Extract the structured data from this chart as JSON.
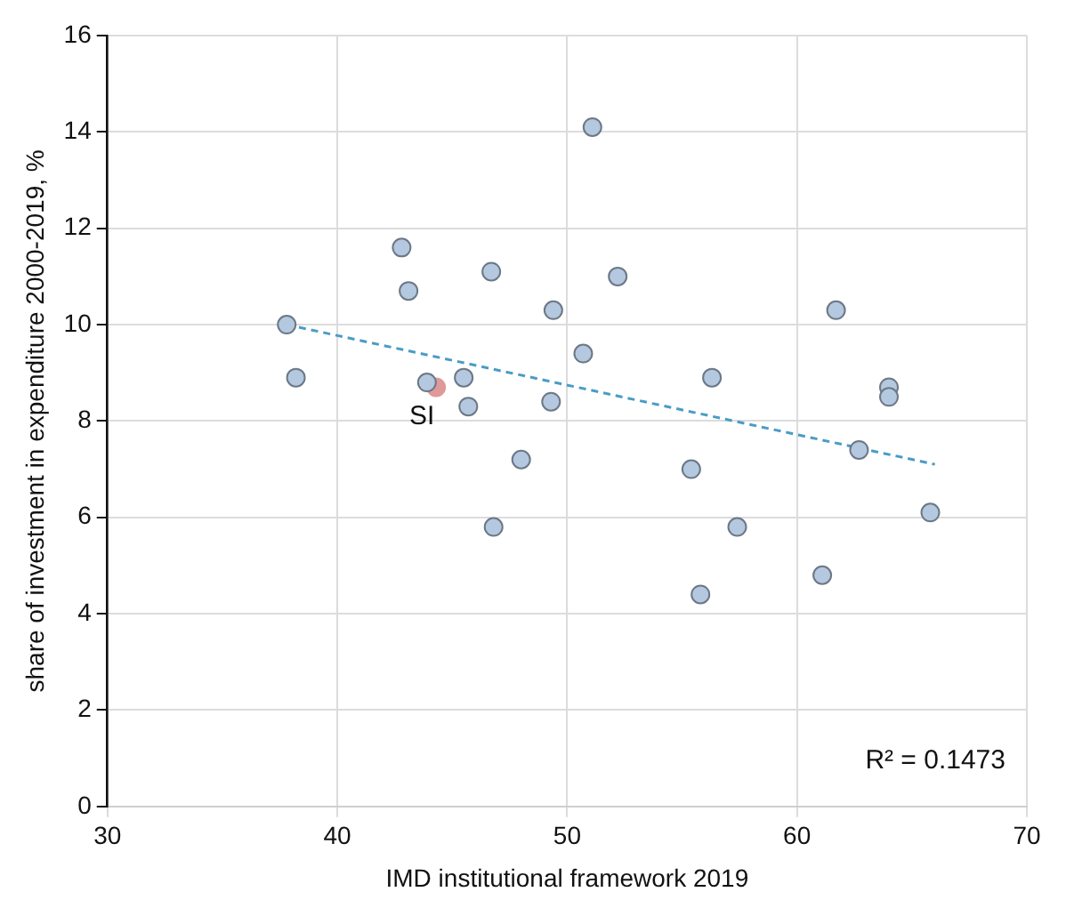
{
  "chart_data": {
    "type": "scatter",
    "xlabel": "IMD institutional framework 2019",
    "ylabel": "share of investment in expenditure 2000-2019, %",
    "xlim": [
      30,
      70
    ],
    "xticks": [
      30,
      40,
      50,
      60,
      70
    ],
    "ylim": [
      0,
      16
    ],
    "yticks": [
      0,
      2,
      4,
      6,
      8,
      10,
      12,
      14,
      16
    ],
    "grid": true,
    "legend": false,
    "marker": "circle",
    "series": [
      {
        "type": "scatter",
        "color": "#b4c8e0",
        "x": [
          37.8,
          38.2,
          42.8,
          43.1,
          43.9,
          45.5,
          45.7,
          46.7,
          46.8,
          48.0,
          49.3,
          49.4,
          50.7,
          51.1,
          52.2,
          55.4,
          55.8,
          56.3,
          57.4,
          61.1,
          61.7,
          62.7,
          64.0,
          64.0,
          65.8
        ],
        "values": [
          10.0,
          8.9,
          11.6,
          10.7,
          8.8,
          8.9,
          8.3,
          11.1,
          5.8,
          7.2,
          8.4,
          10.3,
          9.4,
          14.1,
          11.0,
          7.0,
          4.4,
          8.9,
          5.8,
          4.8,
          10.3,
          7.4,
          8.7,
          8.5,
          6.1
        ]
      },
      {
        "type": "scatter",
        "name": "SI",
        "color": "#e09898",
        "x": [
          44.3
        ],
        "values": [
          8.7
        ]
      },
      {
        "type": "line",
        "color": "#4a9cc4",
        "line_style": "dashed",
        "marker": "none",
        "x": [
          37.8,
          66.0
        ],
        "values": [
          10.0,
          7.1
        ]
      }
    ],
    "annotations": [
      "R² = 0.1473"
    ]
  }
}
